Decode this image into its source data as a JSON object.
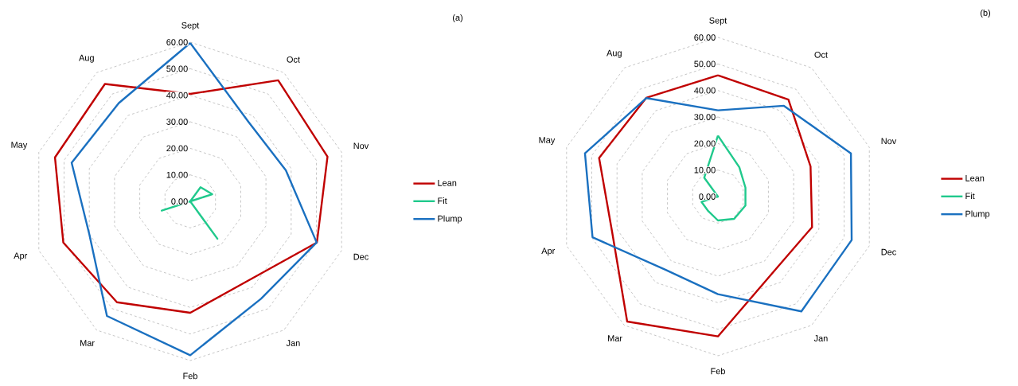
{
  "chart_data": [
    {
      "type": "radar",
      "title": "(a)",
      "categories": [
        "Sept",
        "Oct",
        "Nov",
        "Dec",
        "Jan",
        "Feb",
        "Mar",
        "Apr",
        "May",
        "Aug"
      ],
      "series": [
        {
          "name": "Lean",
          "color": "#c00000",
          "values": [
            40.5,
            56.4,
            54.4,
            50.2,
            37,
            42,
            47,
            50.3,
            53.6,
            54.7
          ]
        },
        {
          "name": "Fit",
          "color": "#20c98c",
          "values": [
            0,
            6.6,
            8.7,
            0,
            17.4,
            0,
            0,
            11.3,
            0,
            0
          ]
        },
        {
          "name": "Plump",
          "color": "#1a70c0",
          "values": [
            59.7,
            37.2,
            37.9,
            50.1,
            45.4,
            58,
            53.4,
            40,
            47,
            45.8
          ]
        }
      ],
      "ylim": [
        0,
        60
      ],
      "yticks": [
        {
          "value": 0,
          "label": "0.00"
        },
        {
          "value": 10,
          "label": "10.00"
        },
        {
          "value": 20,
          "label": "20.00"
        },
        {
          "value": 30,
          "label": "30.00"
        },
        {
          "value": 40,
          "label": "40.00"
        },
        {
          "value": 50,
          "label": "50.00"
        },
        {
          "value": 60,
          "label": "60.00"
        }
      ],
      "grid": true,
      "legend": "right"
    },
    {
      "type": "radar",
      "title": "(b)",
      "categories": [
        "Sept",
        "Oct",
        "Nov",
        "Dec",
        "Jan",
        "Feb",
        "Mar",
        "Apr",
        "May",
        "Aug"
      ],
      "series": [
        {
          "name": "Lean",
          "color": "#c00000",
          "values": [
            45.7,
            45.2,
            36.7,
            37.3,
            35.3,
            52.7,
            58.2,
            42,
            47.1,
            46
          ]
        },
        {
          "name": "Fit",
          "color": "#20c98c",
          "values": [
            23,
            13.7,
            10.9,
            10.9,
            10.4,
            9,
            6.5,
            6.5,
            0,
            8.8
          ]
        },
        {
          "name": "Plump",
          "color": "#1a70c0",
          "values": [
            32.5,
            42.3,
            52.7,
            53,
            53.5,
            36.8,
            34,
            49.7,
            52.7,
            45.9
          ]
        }
      ],
      "ylim": [
        0,
        60
      ],
      "yticks": [
        {
          "value": 0,
          "label": "0.00"
        },
        {
          "value": 10,
          "label": "10.00"
        },
        {
          "value": 20,
          "label": "20.00"
        },
        {
          "value": 30,
          "label": "30.00"
        },
        {
          "value": 40,
          "label": "40.00"
        },
        {
          "value": 50,
          "label": "50.00"
        },
        {
          "value": 60,
          "label": "60.00"
        }
      ],
      "grid": true,
      "legend": "right"
    }
  ]
}
